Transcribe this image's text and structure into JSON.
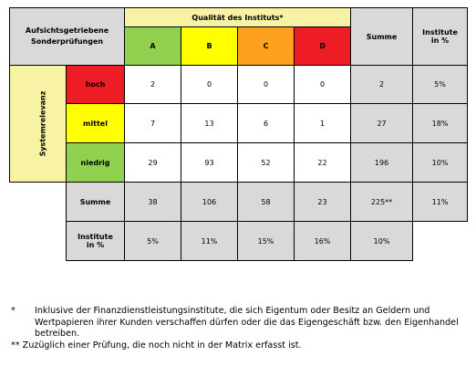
{
  "matrix": {
    "corner_label_line1": "Aufsichtsgetriebene",
    "corner_label_line2": "Sonderprüfungen",
    "quality_header": "Qualität des Instituts*",
    "row_axis_label": "Systemrelevanz",
    "columns": {
      "A": {
        "label": "A",
        "color": "#92d050"
      },
      "B": {
        "label": "B",
        "color": "#ffff00"
      },
      "C": {
        "label": "C",
        "color": "#ffa020"
      },
      "D": {
        "label": "D",
        "color": "#ee1c24"
      }
    },
    "sum_header": "Summe",
    "pct_header_line1": "Institute",
    "pct_header_line2": "in %",
    "rows": {
      "hoch": {
        "label": "hoch",
        "color": "#ee1c24",
        "A": "2",
        "B": "0",
        "C": "0",
        "D": "0",
        "sum": "2",
        "pct": "5%"
      },
      "mittel": {
        "label": "mittel",
        "color": "#ffff00",
        "A": "7",
        "B": "13",
        "C": "6",
        "D": "1",
        "sum": "27",
        "pct": "18%"
      },
      "niedrig": {
        "label": "niedrig",
        "color": "#92d050",
        "A": "29",
        "B": "93",
        "C": "52",
        "D": "22",
        "sum": "196",
        "pct": "10%"
      }
    },
    "sum_row": {
      "label": "Summe",
      "A": "38",
      "B": "106",
      "C": "58",
      "D": "23",
      "sum": "225**",
      "pct": "11%"
    },
    "pct_row": {
      "label_line1": "Institute",
      "label_line2": "in %",
      "A": "5%",
      "B": "11%",
      "C": "15%",
      "D": "16%",
      "sum": "10%"
    }
  },
  "footnotes": [
    {
      "mark": "*",
      "text": "Inklusive der Finanzdienstleistungsinstitute, die sich Eigentum oder Besitz an Geldern und Wertpapieren ihrer Kunden verschaffen dürfen oder die das Eigengeschäft bzw. den Eigenhandel betreiben."
    },
    {
      "mark": "**",
      "text": "Zuzüglich einer Prüfung, die noch nicht in der Matrix erfasst ist."
    }
  ]
}
